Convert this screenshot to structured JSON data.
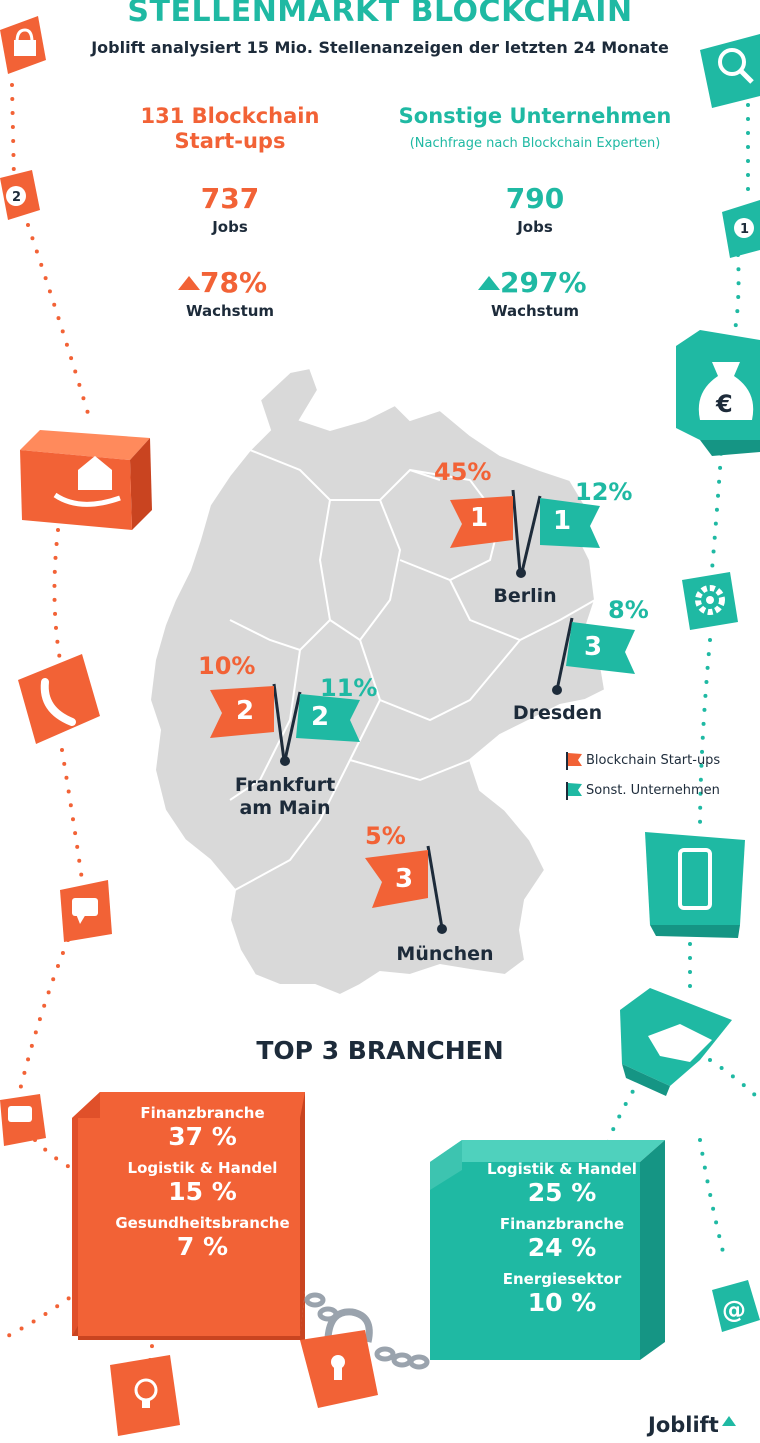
{
  "header": {
    "title": "STELLENMARKT BLOCKCHAIN",
    "subtitle": "Joblift analysiert 15 Mio. Stellenanzeigen der letzten 24 Monate"
  },
  "startups": {
    "title_line1": "131 Blockchain",
    "title_line2": "Start-ups",
    "jobs": "737",
    "jobs_label": "Jobs",
    "growth": "78%",
    "growth_label": "Wachstum",
    "color": "#f26236"
  },
  "others": {
    "title": "Sonstige Unternehmen",
    "subtitle": "(Nachfrage nach Blockchain Experten)",
    "jobs": "790",
    "jobs_label": "Jobs",
    "growth": "297%",
    "growth_label": "Wachstum",
    "color": "#1fb9a3"
  },
  "map": {
    "cities": [
      {
        "name": "Berlin",
        "startup_rank": "1",
        "startup_pct": "45%",
        "other_rank": "1",
        "other_pct": "12%"
      },
      {
        "name": "Dresden",
        "other_rank": "3",
        "other_pct": "8%"
      },
      {
        "name_line1": "Frankfurt",
        "name_line2": "am Main",
        "startup_rank": "2",
        "startup_pct": "10%",
        "other_rank": "2",
        "other_pct": "11%"
      },
      {
        "name": "München",
        "startup_rank": "3",
        "startup_pct": "5%"
      }
    ],
    "legend": {
      "startups": "Blockchain Start-ups",
      "others": "Sonst. Unternehmen"
    }
  },
  "branchen": {
    "title": "TOP 3 BRANCHEN",
    "startups": [
      {
        "label": "Finanzbranche",
        "value": "37 %"
      },
      {
        "label": "Logistik & Handel",
        "value": "15 %"
      },
      {
        "label": "Gesundheitsbranche",
        "value": "7 %"
      }
    ],
    "others": [
      {
        "label": "Logistik & Handel",
        "value": "25 %"
      },
      {
        "label": "Finanzbranche",
        "value": "24 %"
      },
      {
        "label": "Energiesektor",
        "value": "10 %"
      }
    ]
  },
  "logo": "Joblift",
  "icons": [
    "lock-icon",
    "number-2-icon",
    "home-hand-icon",
    "phone-icon",
    "speech-bubble-icon",
    "search-icon",
    "number-1-icon",
    "money-bag-euro-icon",
    "gear-icon",
    "smartphone-icon",
    "handshake-icon",
    "at-sign-icon",
    "lightbulb-icon",
    "padlock-chain-icon"
  ]
}
